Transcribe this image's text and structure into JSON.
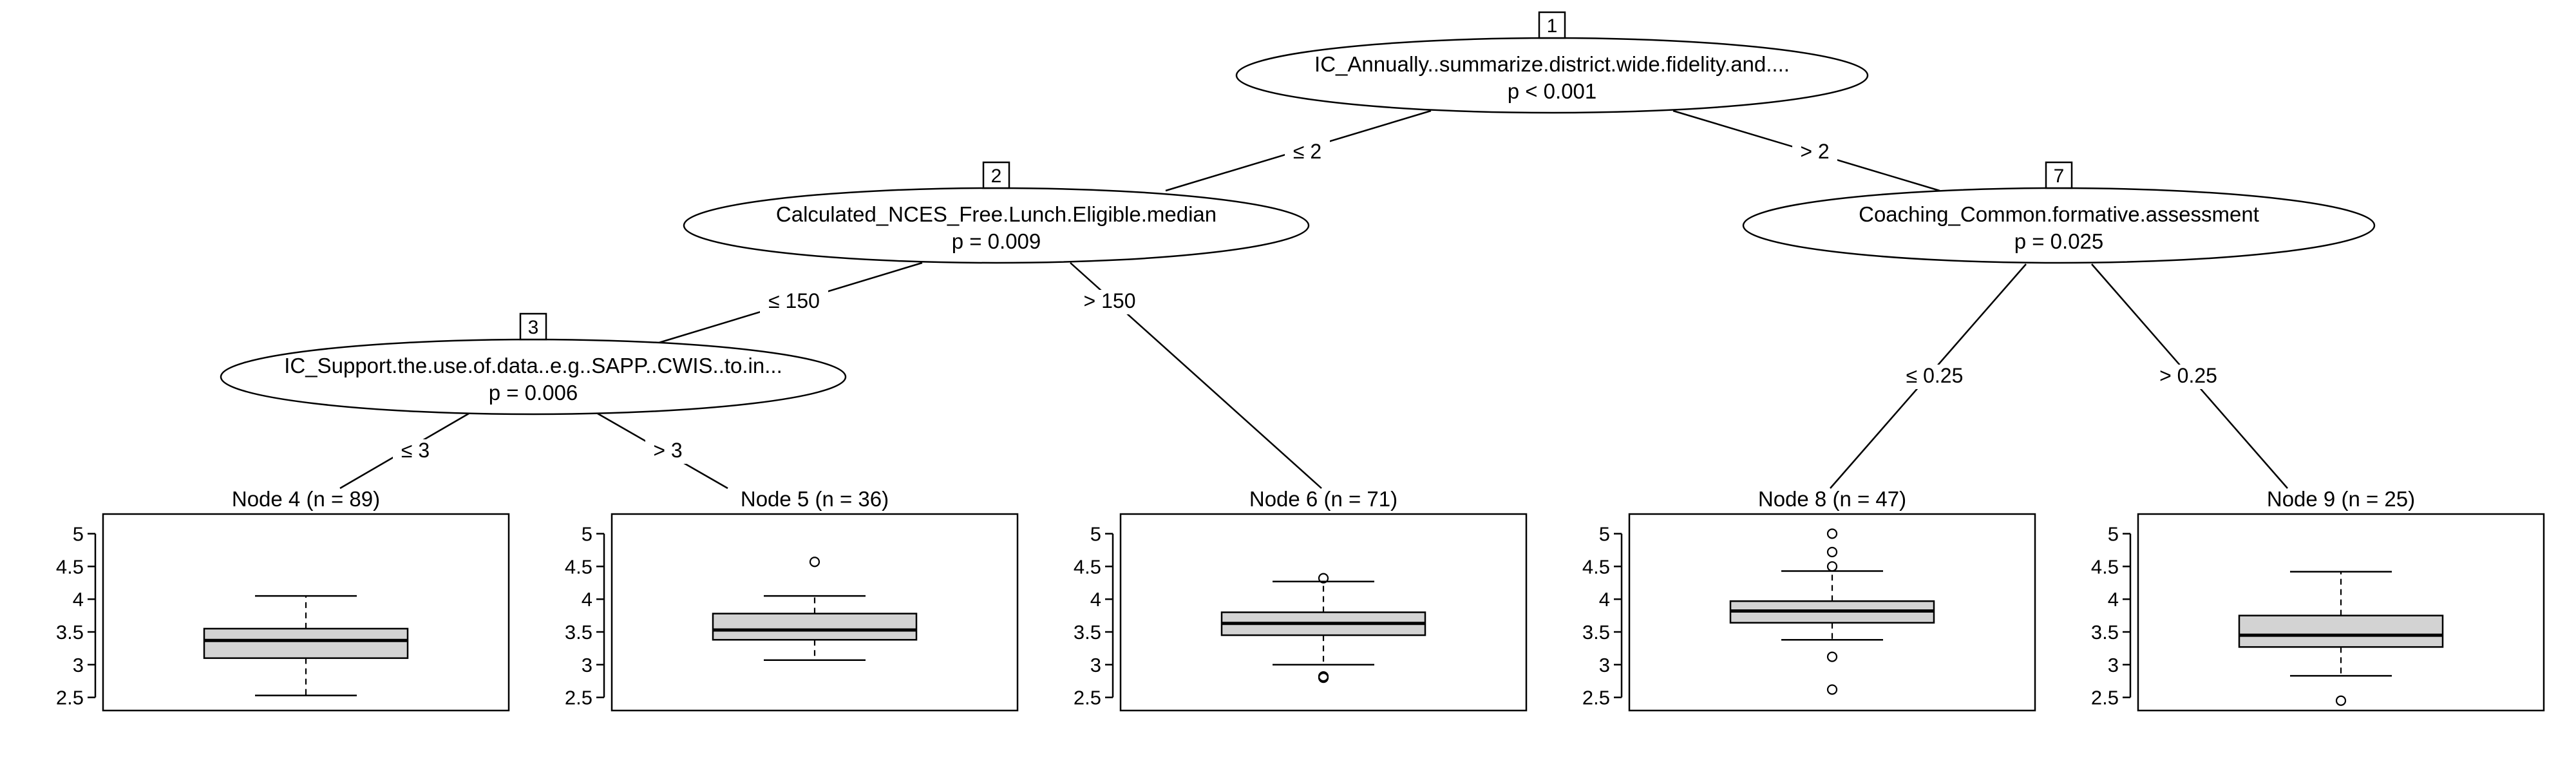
{
  "inner_nodes": [
    {
      "id": "1",
      "variable": "IC_Annually..summarize.district.wide.fidelity.and....",
      "p": "p < 0.001"
    },
    {
      "id": "2",
      "variable": "Calculated_NCES_Free.Lunch.Eligible.median",
      "p": "p = 0.009"
    },
    {
      "id": "3",
      "variable": "IC_Support.the.use.of.data..e.g..SAPP..CWIS..to.in...",
      "p": "p = 0.006"
    },
    {
      "id": "7",
      "variable": "Coaching_Common.formative.assessment",
      "p": "p = 0.025"
    }
  ],
  "edge_labels": [
    {
      "from": "1",
      "to": "2",
      "label": "≤ 2"
    },
    {
      "from": "1",
      "to": "7",
      "label": "> 2"
    },
    {
      "from": "2",
      "to": "3",
      "label": "≤ 150"
    },
    {
      "from": "2",
      "to": "6",
      "label": "> 150"
    },
    {
      "from": "3",
      "to": "4",
      "label": "≤ 3"
    },
    {
      "from": "3",
      "to": "5",
      "label": "> 3"
    },
    {
      "from": "7",
      "to": "8",
      "label": "≤ 0.25"
    },
    {
      "from": "7",
      "to": "9",
      "label": "> 0.25"
    }
  ],
  "terminal_nodes": [
    {
      "id": "4",
      "title": "Node 4 (n = 89)"
    },
    {
      "id": "5",
      "title": "Node 5 (n = 36)"
    },
    {
      "id": "6",
      "title": "Node 6 (n = 71)"
    },
    {
      "id": "8",
      "title": "Node 8 (n = 47)"
    },
    {
      "id": "9",
      "title": "Node 9 (n = 25)"
    }
  ],
  "y_ticks": [
    "5",
    "4.5",
    "4",
    "3.5",
    "3",
    "2.5"
  ],
  "colors": {
    "box_fill": "#d3d3d3",
    "line": "#000000",
    "background": "#ffffff"
  },
  "chart_data": {
    "type": "boxplot",
    "ylim": [
      2.3,
      5.3
    ],
    "boxes": [
      {
        "node": "4",
        "lower_whisker": 2.53,
        "q1": 3.1,
        "median": 3.37,
        "q3": 3.55,
        "upper_whisker": 4.05,
        "outliers": []
      },
      {
        "node": "5",
        "lower_whisker": 3.07,
        "q1": 3.38,
        "median": 3.53,
        "q3": 3.78,
        "upper_whisker": 4.05,
        "outliers": [
          4.57
        ]
      },
      {
        "node": "6",
        "lower_whisker": 3.0,
        "q1": 3.45,
        "median": 3.63,
        "q3": 3.8,
        "upper_whisker": 4.27,
        "outliers": [
          4.32,
          2.82,
          2.8
        ]
      },
      {
        "node": "8",
        "lower_whisker": 3.38,
        "q1": 3.64,
        "median": 3.82,
        "q3": 3.97,
        "upper_whisker": 4.43,
        "outliers": [
          5.0,
          4.72,
          4.5,
          3.12,
          2.62
        ]
      },
      {
        "node": "9",
        "lower_whisker": 2.83,
        "q1": 3.27,
        "median": 3.45,
        "q3": 3.75,
        "upper_whisker": 4.42,
        "outliers": [
          2.45
        ]
      }
    ]
  }
}
